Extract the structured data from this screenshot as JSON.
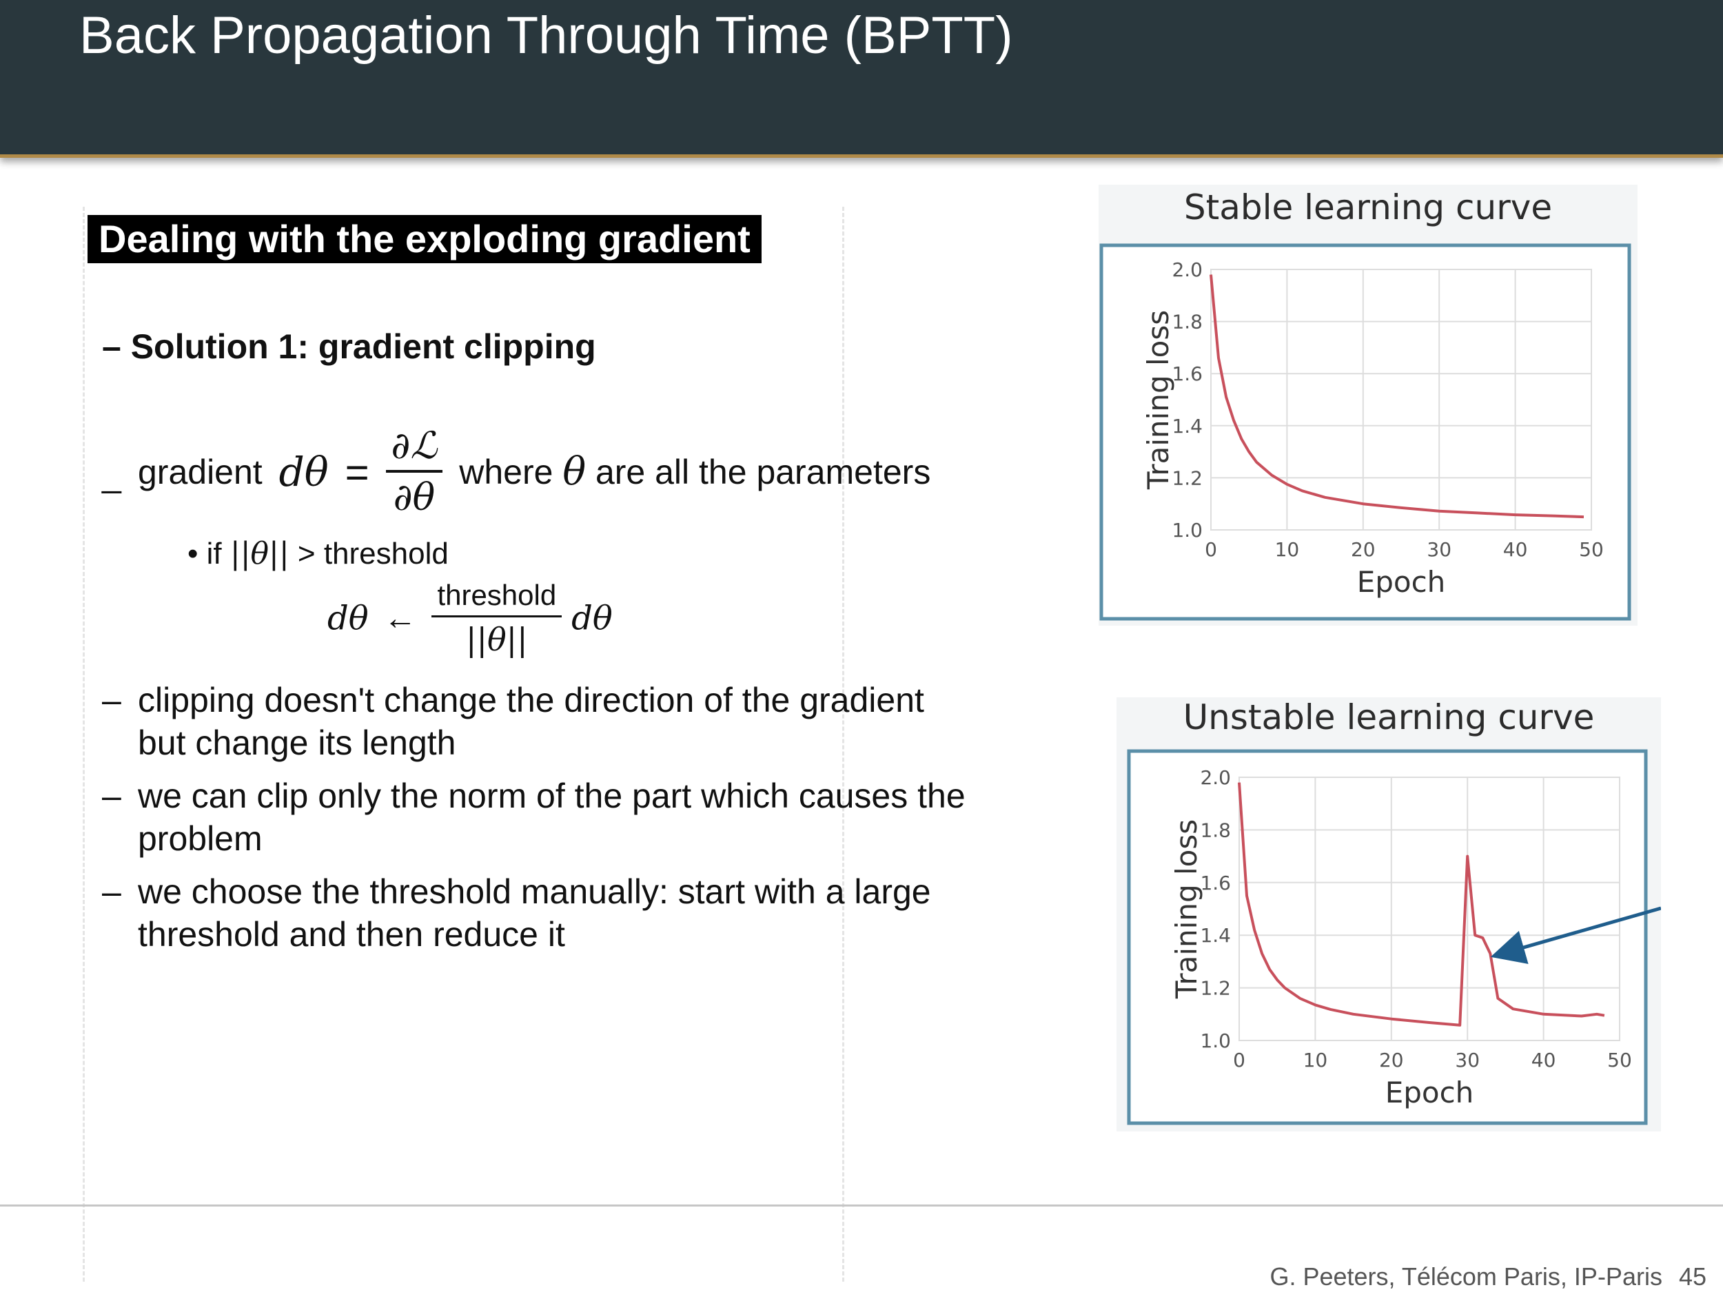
{
  "slide": {
    "title": "Back Propagation Through Time (BPTT)",
    "section_heading": "Dealing with the exploding gradient"
  },
  "content": {
    "solution_heading": "Solution 1: gradient clipping",
    "gradient_word": "gradient",
    "d_theta": "dθ",
    "equals": "=",
    "partial_L": "∂ℒ",
    "partial_theta": "∂θ",
    "where_text": "where",
    "theta": "θ",
    "params_text": "are all the parameters",
    "bullet_if": "if",
    "norm_theta": "||θ||",
    "bullet_threshold": "> threshold",
    "arrow": "←",
    "threshold_word": "threshold",
    "points": [
      [
        "clipping doesn't change the direction of the gradient",
        "but change its length"
      ],
      [
        "we can clip only the norm of the part which causes the",
        "problem"
      ],
      [
        "we choose the threshold manually: start with a large",
        "threshold and then reduce it"
      ]
    ]
  },
  "footer": {
    "credit": "G. Peeters, Télécom Paris, IP-Paris",
    "page": "45"
  },
  "colors": {
    "title_bar": "#29373d",
    "title_rule": "#b08a48",
    "curve": "#c8505c",
    "frame": "#5b8fa8",
    "arrow": "#1f5d8c"
  },
  "chart_data": [
    {
      "type": "line",
      "title": "Stable learning curve",
      "xlabel": "Epoch",
      "ylabel": "Training loss",
      "xlim": [
        0,
        50
      ],
      "ylim": [
        1.0,
        2.0
      ],
      "xticks": [
        0,
        10,
        20,
        30,
        40,
        50
      ],
      "yticks": [
        "1.0",
        "1.2",
        "1.4",
        "1.6",
        "1.8",
        "2.0"
      ],
      "grid": true,
      "x": [
        0,
        1,
        2,
        3,
        4,
        5,
        6,
        8,
        10,
        12,
        15,
        20,
        25,
        30,
        35,
        40,
        45,
        49
      ],
      "y": [
        1.98,
        1.66,
        1.51,
        1.42,
        1.35,
        1.3,
        1.26,
        1.21,
        1.175,
        1.15,
        1.125,
        1.1,
        1.085,
        1.072,
        1.065,
        1.058,
        1.054,
        1.05
      ]
    },
    {
      "type": "line",
      "title": "Unstable learning curve",
      "xlabel": "Epoch",
      "ylabel": "Training loss",
      "xlim": [
        0,
        50
      ],
      "ylim": [
        1.0,
        2.0
      ],
      "xticks": [
        0,
        10,
        20,
        30,
        40,
        50
      ],
      "yticks": [
        "1.0",
        "1.2",
        "1.4",
        "1.6",
        "1.8",
        "2.0"
      ],
      "grid": true,
      "x": [
        0,
        1,
        2,
        3,
        4,
        5,
        6,
        8,
        10,
        12,
        15,
        20,
        25,
        29,
        30,
        31,
        32,
        33,
        34,
        36,
        40,
        45,
        47,
        48
      ],
      "y": [
        1.98,
        1.55,
        1.42,
        1.33,
        1.27,
        1.23,
        1.2,
        1.16,
        1.135,
        1.118,
        1.1,
        1.082,
        1.068,
        1.058,
        1.7,
        1.4,
        1.39,
        1.33,
        1.16,
        1.12,
        1.1,
        1.093,
        1.1,
        1.095
      ]
    }
  ]
}
